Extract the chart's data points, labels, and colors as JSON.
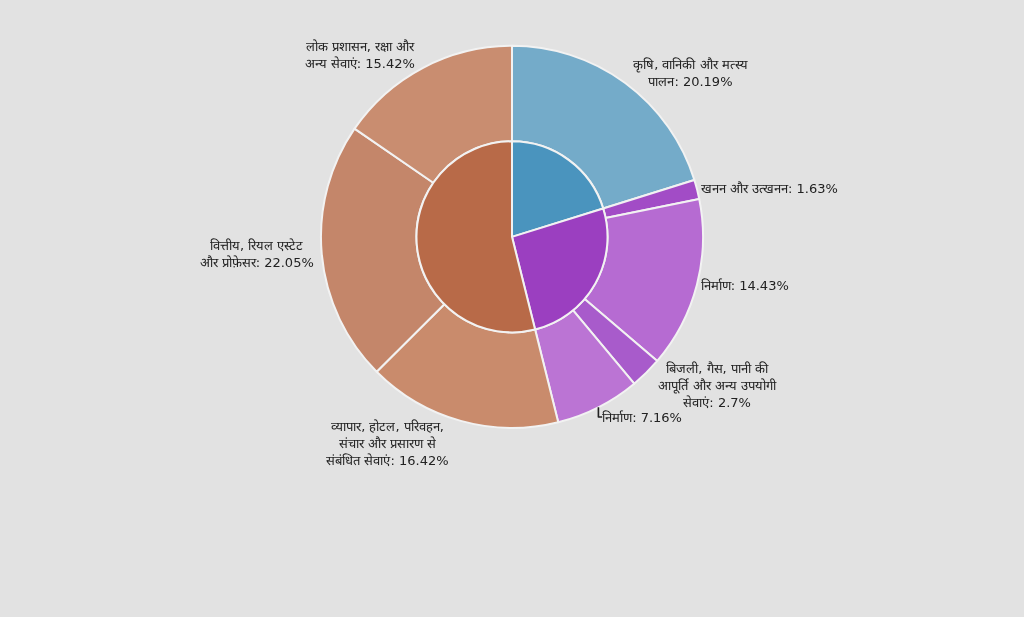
{
  "chart_data": {
    "type": "donut",
    "categories": [
      "कृषि, वानिकी और मत्स्य पालन: 20.19%",
      "खनन और उत्खनन: 1.63%",
      "निर्माण: 14.43%",
      "बिजली, गैस, पानी की आपूर्ति और अन्य उपयोगी सेवाएं: 2.7%",
      "निर्माण: 7.16%",
      "व्यापार, होटल, परिवहन, संचार और प्रसारण से संबंधित सेवाएं: 16.42%",
      "वित्तीय, रियल एस्टेट और प्रोफ़ेसर: 22.05%",
      "लोक प्रशासन, रक्षा और अन्य सेवाएं: 15.42%"
    ],
    "series": [
      {
        "values": [
          20.19,
          1.63,
          14.43,
          2.7,
          7.16,
          16.42,
          22.05,
          15.42
        ],
        "colors": [
          "#74abc9",
          "#a24cc6",
          "#b66bd2",
          "#a85bcb",
          "#bb74d4",
          "#c98b6c",
          "#c4866a",
          "#c98d70"
        ]
      },
      {
        "values": [
          20.19,
          25.92,
          null,
          null,
          null,
          53.89,
          null,
          null
        ],
        "colors": [
          "#4a94be",
          "#9b3fc0",
          null,
          null,
          null,
          "#b86a48",
          null,
          null
        ]
      }
    ]
  }
}
